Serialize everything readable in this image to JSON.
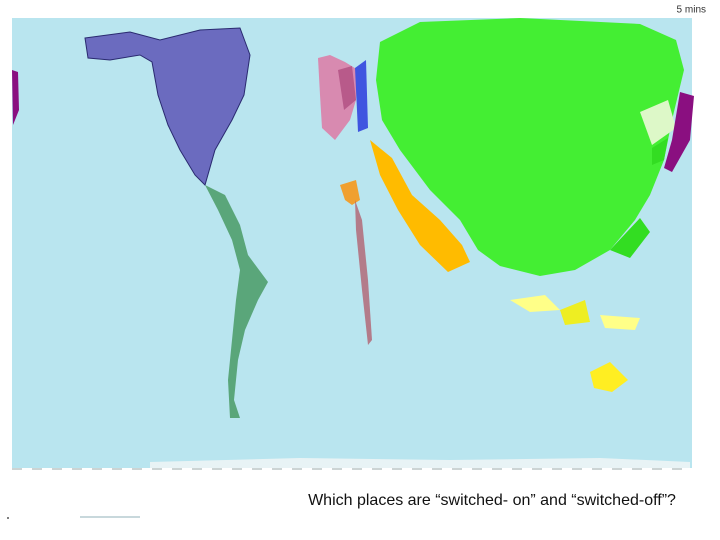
{
  "timer": "5 mins",
  "question": "Which places are “switched- on” and “switched-off”?"
}
